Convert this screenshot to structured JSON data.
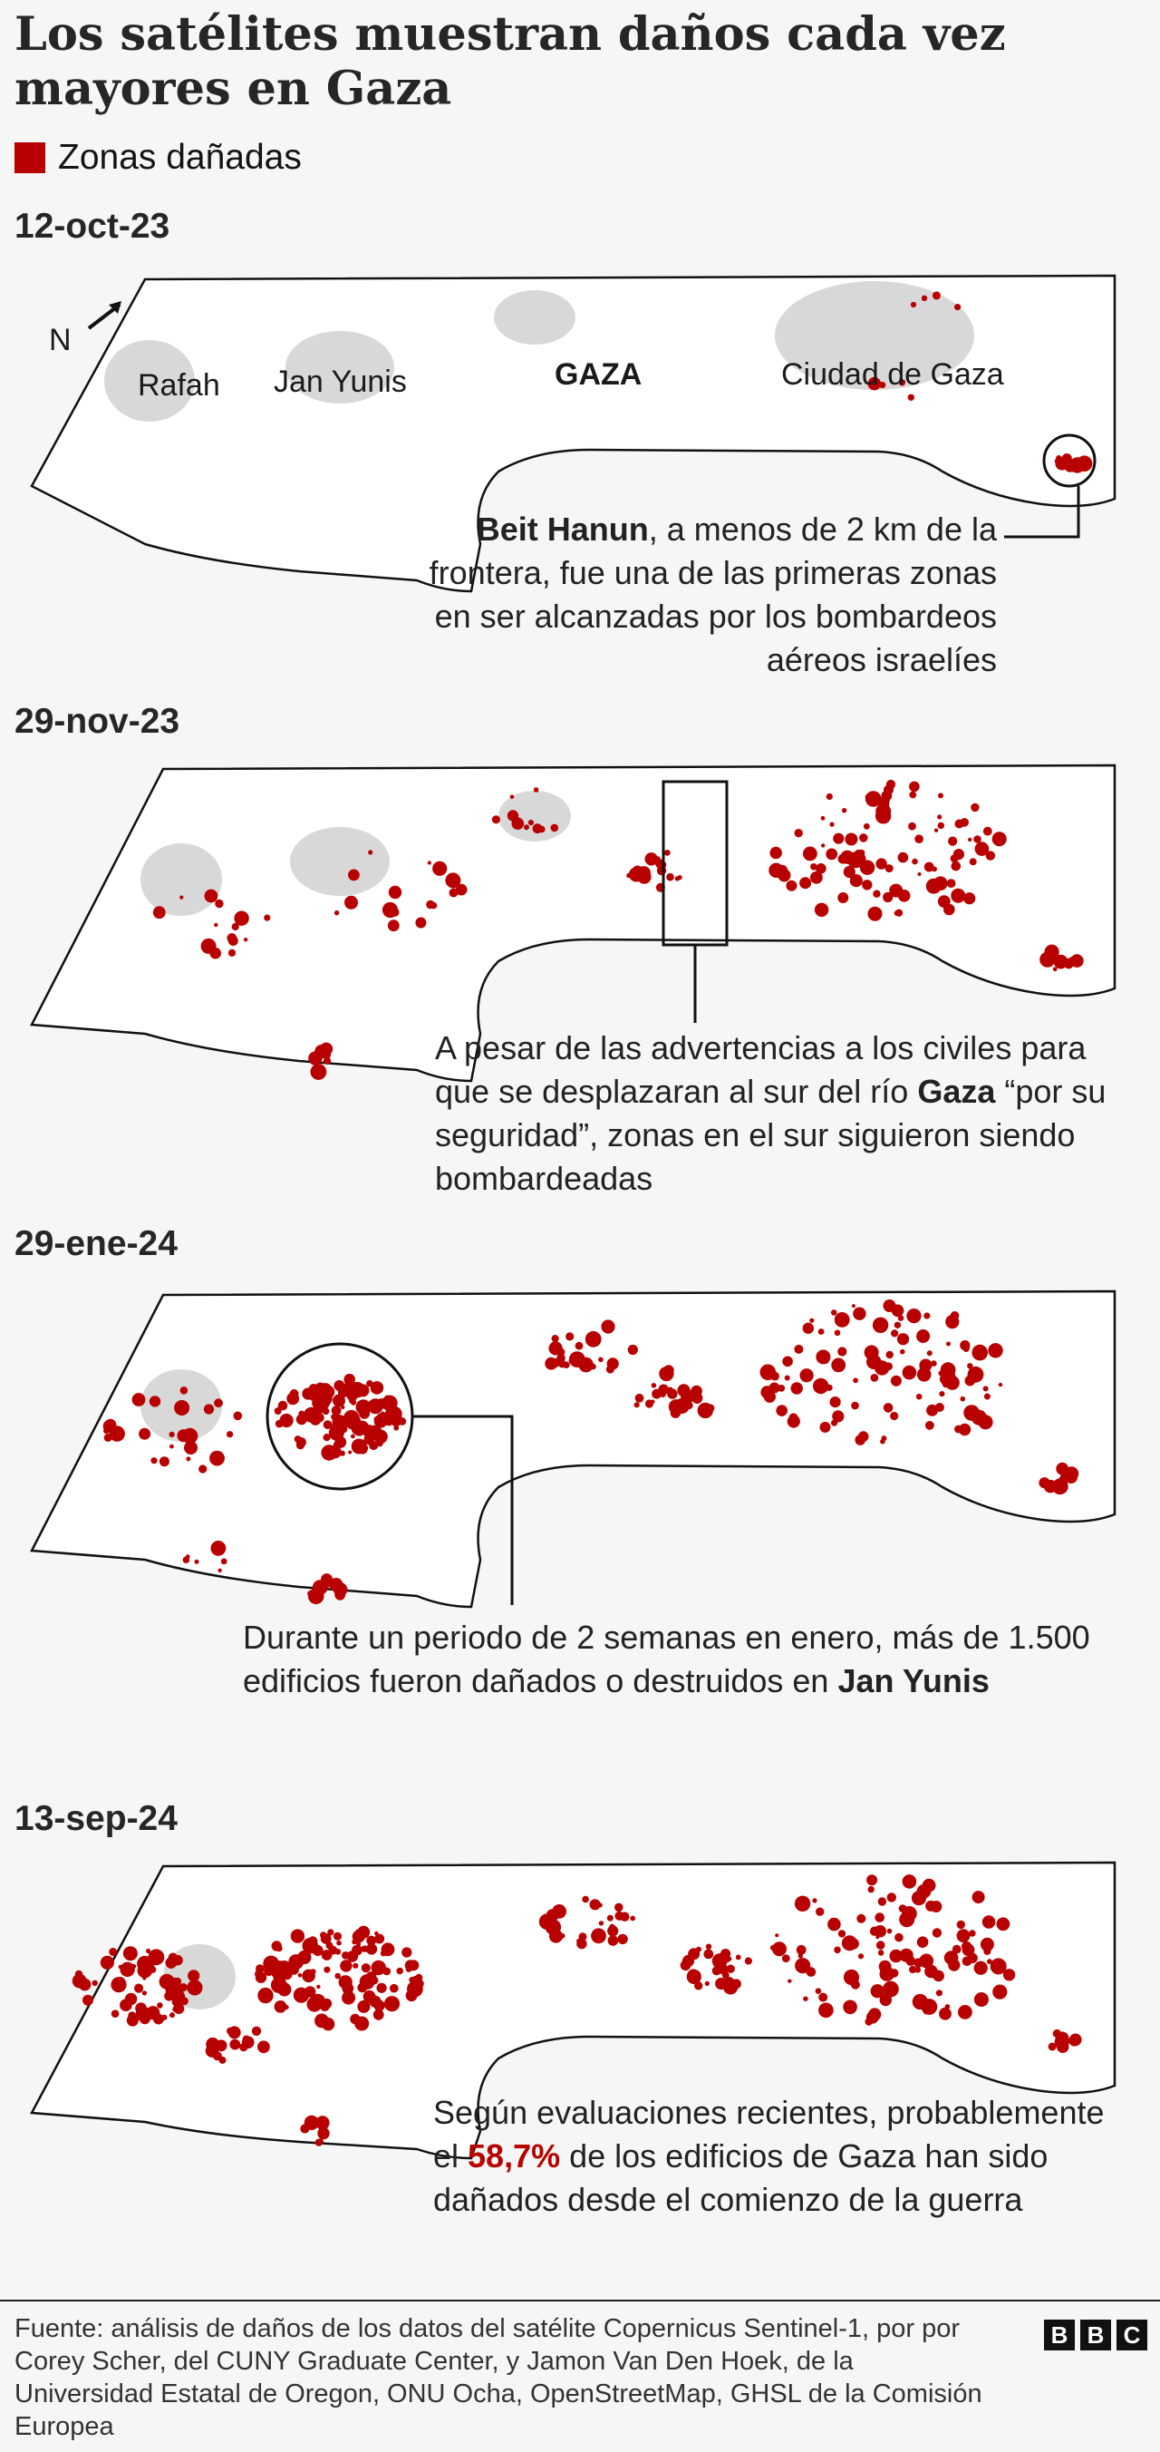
{
  "title": "Los satélites muestran daños cada vez mayores en Gaza",
  "legend": {
    "label": "Zonas dañadas",
    "color": "#b80000"
  },
  "panels": [
    {
      "date": "12-oct-23",
      "labels": {
        "north": "N",
        "rafah": "Rafah",
        "jan_yunis": "Jan Yunis",
        "gaza": "GAZA",
        "ciudad": "Ciudad de Gaza"
      },
      "note_bold": "Beit Hanun",
      "note_rest": ", a menos de 2 km de la frontera, fue una de las primeras zonas en ser alcanzadas por los bombardeos aéreos israelíes"
    },
    {
      "date": "29-nov-23",
      "note_a": "A pesar de las advertencias a los civiles para que se desplazaran al sur del río ",
      "note_bold": "Gaza",
      "note_b": " “por su seguridad”, zonas en el sur siguieron siendo bombardeadas"
    },
    {
      "date": "29-ene-24",
      "note_a": "Durante un periodo de 2 semanas en enero, más de 1.500 edificios fueron dañados o destruidos en ",
      "note_bold": "Jan Yunis"
    },
    {
      "date": "13-sep-24",
      "note_a": "Según evaluaciones recientes, probablemente el ",
      "note_highlight": "58,7%",
      "note_b": " de los edificios de Gaza han sido dañados desde el comienzo de la guerra"
    }
  ],
  "footer": {
    "source": "Fuente: análisis de daños de los datos del satélite Copernicus Sentinel-1, por por Corey Scher, del CUNY Graduate Center, y Jamon Van Den Hoek, de la Universidad Estatal de Oregon, ONU Ocha, OpenStreetMap, GHSL de la Comisión Europea",
    "logo": [
      "B",
      "B",
      "C"
    ]
  }
}
